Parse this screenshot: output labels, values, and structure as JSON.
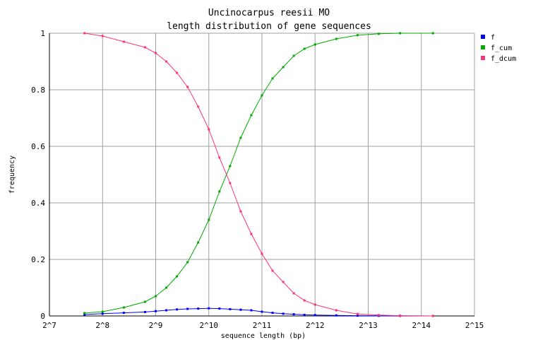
{
  "chart_data": {
    "type": "line",
    "title_line1": "Uncinocarpus reesii MO",
    "title_line2": "length distribution of gene sequences",
    "xlabel": "sequence length (bp)",
    "ylabel": "frequency",
    "x_scale": "log2",
    "x_ticks": [
      "2^7",
      "2^8",
      "2^9",
      "2^10",
      "2^11",
      "2^12",
      "2^13",
      "2^14",
      "2^15"
    ],
    "x_tick_exponents": [
      7,
      8,
      9,
      10,
      11,
      12,
      13,
      14,
      15
    ],
    "y_ticks": [
      "0",
      "0.2",
      "0.4",
      "0.6",
      "0.8",
      "1"
    ],
    "y_tick_values": [
      0,
      0.2,
      0.4,
      0.6,
      0.8,
      1
    ],
    "xlim_log2": [
      7,
      15
    ],
    "ylim": [
      0,
      1
    ],
    "grid": true,
    "legend_position": "top-right",
    "series": [
      {
        "name": "f",
        "color": "#0000ff",
        "points": [
          [
            7.66,
            0.005
          ],
          [
            8.0,
            0.008
          ],
          [
            8.4,
            0.011
          ],
          [
            8.8,
            0.014
          ],
          [
            9.0,
            0.017
          ],
          [
            9.2,
            0.02
          ],
          [
            9.4,
            0.023
          ],
          [
            9.6,
            0.025
          ],
          [
            9.8,
            0.026
          ],
          [
            10.0,
            0.027
          ],
          [
            10.2,
            0.026
          ],
          [
            10.4,
            0.024
          ],
          [
            10.6,
            0.022
          ],
          [
            10.8,
            0.02
          ],
          [
            11.0,
            0.015
          ],
          [
            11.2,
            0.011
          ],
          [
            11.4,
            0.008
          ],
          [
            11.6,
            0.006
          ],
          [
            11.8,
            0.004
          ],
          [
            12.0,
            0.003
          ],
          [
            12.4,
            0.002
          ],
          [
            12.8,
            0.001
          ],
          [
            13.2,
            0.0005
          ],
          [
            13.6,
            0.0002
          ],
          [
            14.22,
            0.0001
          ]
        ]
      },
      {
        "name": "f_cum",
        "color": "#00aa00",
        "points": [
          [
            7.66,
            0.01
          ],
          [
            8.0,
            0.015
          ],
          [
            8.4,
            0.03
          ],
          [
            8.8,
            0.05
          ],
          [
            9.0,
            0.07
          ],
          [
            9.2,
            0.1
          ],
          [
            9.4,
            0.14
          ],
          [
            9.6,
            0.19
          ],
          [
            9.8,
            0.26
          ],
          [
            10.0,
            0.34
          ],
          [
            10.2,
            0.44
          ],
          [
            10.4,
            0.53
          ],
          [
            10.6,
            0.63
          ],
          [
            10.8,
            0.71
          ],
          [
            11.0,
            0.78
          ],
          [
            11.2,
            0.84
          ],
          [
            11.4,
            0.88
          ],
          [
            11.6,
            0.92
          ],
          [
            11.8,
            0.945
          ],
          [
            12.0,
            0.96
          ],
          [
            12.4,
            0.98
          ],
          [
            12.8,
            0.993
          ],
          [
            13.2,
            0.998
          ],
          [
            13.6,
            1.0
          ],
          [
            14.22,
            1.0
          ]
        ]
      },
      {
        "name": "f_dcum",
        "color": "#ff3377",
        "points": [
          [
            7.66,
            1.0
          ],
          [
            8.0,
            0.99
          ],
          [
            8.4,
            0.97
          ],
          [
            8.8,
            0.95
          ],
          [
            9.0,
            0.93
          ],
          [
            9.2,
            0.9
          ],
          [
            9.4,
            0.86
          ],
          [
            9.6,
            0.81
          ],
          [
            9.8,
            0.74
          ],
          [
            10.0,
            0.66
          ],
          [
            10.2,
            0.56
          ],
          [
            10.4,
            0.47
          ],
          [
            10.6,
            0.37
          ],
          [
            10.8,
            0.29
          ],
          [
            11.0,
            0.22
          ],
          [
            11.2,
            0.16
          ],
          [
            11.4,
            0.12
          ],
          [
            11.6,
            0.08
          ],
          [
            11.8,
            0.055
          ],
          [
            12.0,
            0.04
          ],
          [
            12.4,
            0.02
          ],
          [
            12.8,
            0.007
          ],
          [
            13.2,
            0.003
          ],
          [
            13.6,
            0.001
          ],
          [
            14.22,
            0.0
          ]
        ]
      }
    ]
  }
}
